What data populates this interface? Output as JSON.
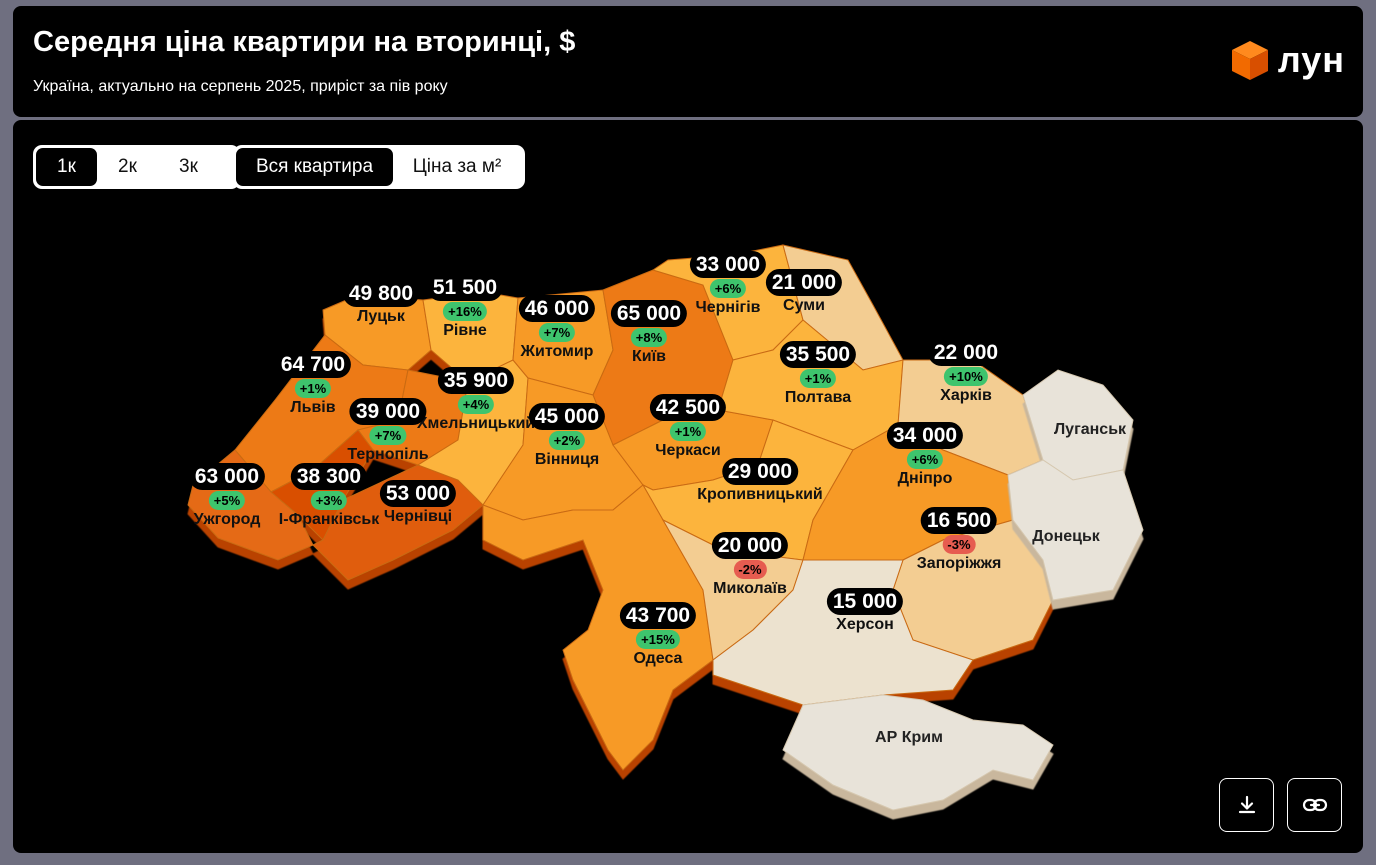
{
  "header": {
    "title": "Середня ціна квартири на вторинці, $",
    "subtitle": "Україна, актуально на серпень 2025, приріст за пів року",
    "logo_text": "ЛУН",
    "logo_color": "#ff6a00"
  },
  "rooms_toggle": {
    "options": [
      "1к",
      "2к",
      "3к"
    ],
    "selected": "1к"
  },
  "mode_toggle": {
    "options": [
      "Вся квартира",
      "Ціна за м²"
    ],
    "selected": "Вся квартира"
  },
  "color_scale": {
    "darkest": "#d94f00",
    "dark": "#ed7a12",
    "mid": "#f79a25",
    "light": "#fcb43c",
    "pale": "#f3cd92",
    "palest": "#ece2cf",
    "no_data": "#e8e3d9"
  },
  "cities": [
    {
      "name": "Луцьк",
      "price": "49 800",
      "growth": ""
    },
    {
      "name": "Рівне",
      "price": "51 500",
      "growth": "+16%"
    },
    {
      "name": "Житомир",
      "price": "46 000",
      "growth": "+7%"
    },
    {
      "name": "Київ",
      "price": "65 000",
      "growth": "+8%"
    },
    {
      "name": "Чернігів",
      "price": "33 000",
      "growth": "+6%"
    },
    {
      "name": "Суми",
      "price": "21 000",
      "growth": ""
    },
    {
      "name": "Львів",
      "price": "64 700",
      "growth": "+1%"
    },
    {
      "name": "Хмельницький",
      "price": "35 900",
      "growth": "+4%"
    },
    {
      "name": "Тернопіль",
      "price": "39 000",
      "growth": "+7%"
    },
    {
      "name": "Вінниця",
      "price": "45 000",
      "growth": "+2%"
    },
    {
      "name": "Черкаси",
      "price": "42 500",
      "growth": "+1%"
    },
    {
      "name": "Полтава",
      "price": "35 500",
      "growth": "+1%"
    },
    {
      "name": "Харків",
      "price": "22 000",
      "growth": "+10%"
    },
    {
      "name": "Ужгород",
      "price": "63 000",
      "growth": "+5%"
    },
    {
      "name": "І-Франківськ",
      "price": "38 300",
      "growth": "+3%"
    },
    {
      "name": "Чернівці",
      "price": "53 000",
      "growth": ""
    },
    {
      "name": "Кропивницький",
      "price": "29 000",
      "growth": ""
    },
    {
      "name": "Дніпро",
      "price": "34 000",
      "growth": "+6%"
    },
    {
      "name": "Запоріжжя",
      "price": "16 500",
      "growth": "-3%"
    },
    {
      "name": "Миколаїв",
      "price": "20 000",
      "growth": "-2%"
    },
    {
      "name": "Херсон",
      "price": "15 000",
      "growth": ""
    },
    {
      "name": "Одеса",
      "price": "43 700",
      "growth": "+15%"
    }
  ],
  "no_data_regions": [
    "Луганськ",
    "Донецьк",
    "АР Крим"
  ],
  "actions": {
    "download": "download-icon",
    "share": "link-icon"
  }
}
